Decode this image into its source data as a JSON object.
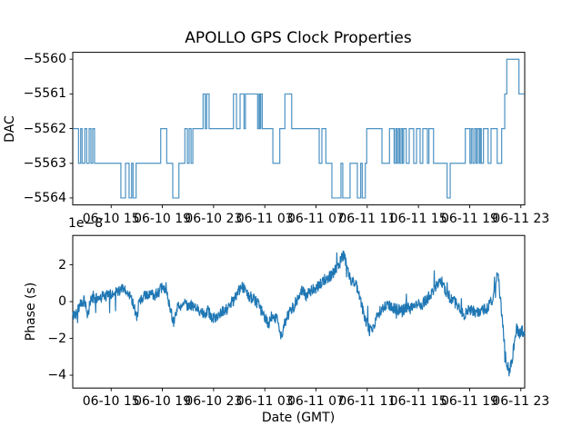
{
  "figure": {
    "title": "APOLLO GPS Clock Properties",
    "background_color": "#ffffff",
    "line_color": "#1f77b4",
    "text_color": "#000000"
  },
  "chart_data": [
    {
      "type": "line",
      "subplot": "top",
      "title": "APOLLO GPS Clock Properties",
      "ylabel": "DAC",
      "drawstyle": "steps-post",
      "grid": false,
      "legend": "none",
      "ylim": [
        -5564.2,
        -5559.8
      ],
      "yticks": [
        -5564,
        -5563,
        -5562,
        -5561,
        -5560
      ],
      "ytick_labels": [
        "−5564",
        "−5563",
        "−5562",
        "−5561",
        "−5560"
      ],
      "x_axis_unit": "hours from left edge of axis",
      "xlim_hours": [
        0,
        35.3
      ],
      "xticks_hours": [
        3,
        7,
        11,
        15,
        19,
        23,
        27,
        31,
        35
      ],
      "xtick_labels": [
        "06-10 15",
        "06-10 19",
        "06-10 23",
        "06-11 03",
        "06-11 07",
        "06-11 11",
        "06-11 15",
        "06-11 19",
        "06-11 23"
      ],
      "steps": [
        [
          0.0,
          -5562
        ],
        [
          0.45,
          -5563
        ],
        [
          0.62,
          -5562
        ],
        [
          0.73,
          -5563
        ],
        [
          0.94,
          -5562
        ],
        [
          1.09,
          -5563
        ],
        [
          1.28,
          -5562
        ],
        [
          1.42,
          -5563
        ],
        [
          1.56,
          -5562
        ],
        [
          1.7,
          -5563
        ],
        [
          3.76,
          -5564
        ],
        [
          4.12,
          -5563
        ],
        [
          4.4,
          -5564
        ],
        [
          4.6,
          -5563
        ],
        [
          4.71,
          -5564
        ],
        [
          4.95,
          -5563
        ],
        [
          6.87,
          -5562
        ],
        [
          7.34,
          -5563
        ],
        [
          7.81,
          -5564
        ],
        [
          8.29,
          -5563
        ],
        [
          8.76,
          -5562
        ],
        [
          8.95,
          -5563
        ],
        [
          9.09,
          -5562
        ],
        [
          9.24,
          -5563
        ],
        [
          9.38,
          -5562
        ],
        [
          10.18,
          -5561
        ],
        [
          10.35,
          -5562
        ],
        [
          10.46,
          -5561
        ],
        [
          10.65,
          -5562
        ],
        [
          12.55,
          -5561
        ],
        [
          12.79,
          -5562
        ],
        [
          13.07,
          -5561
        ],
        [
          13.38,
          -5562
        ],
        [
          13.49,
          -5561
        ],
        [
          14.44,
          -5562
        ],
        [
          14.55,
          -5561
        ],
        [
          14.63,
          -5562
        ],
        [
          14.68,
          -5561
        ],
        [
          14.8,
          -5562
        ],
        [
          15.63,
          -5563
        ],
        [
          16.17,
          -5562
        ],
        [
          16.57,
          -5561
        ],
        [
          17.1,
          -5562
        ],
        [
          19.25,
          -5563
        ],
        [
          19.46,
          -5562
        ],
        [
          19.77,
          -5563
        ],
        [
          20.24,
          -5564
        ],
        [
          20.95,
          -5563
        ],
        [
          21.09,
          -5564
        ],
        [
          21.66,
          -5563
        ],
        [
          22.23,
          -5564
        ],
        [
          22.49,
          -5563
        ],
        [
          22.61,
          -5564
        ],
        [
          22.85,
          -5563
        ],
        [
          22.96,
          -5562
        ],
        [
          24.15,
          -5563
        ],
        [
          24.74,
          -5562
        ],
        [
          25.1,
          -5563
        ],
        [
          25.22,
          -5562
        ],
        [
          25.32,
          -5563
        ],
        [
          25.43,
          -5562
        ],
        [
          25.53,
          -5563
        ],
        [
          25.64,
          -5562
        ],
        [
          25.75,
          -5563
        ],
        [
          25.85,
          -5562
        ],
        [
          26.05,
          -5563
        ],
        [
          26.28,
          -5562
        ],
        [
          26.63,
          -5563
        ],
        [
          26.85,
          -5562
        ],
        [
          27.13,
          -5563
        ],
        [
          27.34,
          -5562
        ],
        [
          27.7,
          -5563
        ],
        [
          27.82,
          -5562
        ],
        [
          28.18,
          -5563
        ],
        [
          29.24,
          -5564
        ],
        [
          29.48,
          -5563
        ],
        [
          30.66,
          -5562
        ],
        [
          31.02,
          -5563
        ],
        [
          31.13,
          -5562
        ],
        [
          31.25,
          -5563
        ],
        [
          31.39,
          -5562
        ],
        [
          31.51,
          -5563
        ],
        [
          31.61,
          -5562
        ],
        [
          31.75,
          -5563
        ],
        [
          31.82,
          -5562
        ],
        [
          31.91,
          -5563
        ],
        [
          32.08,
          -5562
        ],
        [
          32.44,
          -5563
        ],
        [
          32.67,
          -5562
        ],
        [
          33.15,
          -5563
        ],
        [
          33.5,
          -5562
        ],
        [
          33.74,
          -5561
        ],
        [
          33.9,
          -5560
        ],
        [
          34.85,
          -5561
        ]
      ]
    },
    {
      "type": "line",
      "subplot": "bottom",
      "ylabel": "Phase (s)",
      "xlabel": "Date (GMT)",
      "offset_text": "1e−8",
      "grid": false,
      "legend": "none",
      "y_unit_scale": 1e-08,
      "ylim_1e8": [
        -4.7,
        3.6
      ],
      "yticks_1e8": [
        -4,
        -2,
        0,
        2
      ],
      "ytick_labels": [
        "−4",
        "−2",
        "0",
        "2"
      ],
      "x_axis_unit": "hours from left edge of axis",
      "xlim_hours": [
        0,
        35.3
      ],
      "xticks_hours": [
        3,
        7,
        11,
        15,
        19,
        23,
        27,
        31,
        35
      ],
      "xtick_labels": [
        "06-10 15",
        "06-10 19",
        "06-10 23",
        "06-11 03",
        "06-11 07",
        "06-11 11",
        "06-11 15",
        "06-11 19",
        "06-11 23"
      ],
      "trend_anchors_1e8": [
        [
          0,
          -0.8
        ],
        [
          0.3,
          -0.6
        ],
        [
          0.6,
          -0.1
        ],
        [
          0.9,
          0.1
        ],
        [
          1.15,
          -0.9
        ],
        [
          1.4,
          0.2
        ],
        [
          1.8,
          0.1
        ],
        [
          2.2,
          0.3
        ],
        [
          2.6,
          0.3
        ],
        [
          3.0,
          0.4
        ],
        [
          3.4,
          0.5
        ],
        [
          3.8,
          0.7
        ],
        [
          4.2,
          0.5
        ],
        [
          4.6,
          0.2
        ],
        [
          5.0,
          -0.8
        ],
        [
          5.2,
          0.0
        ],
        [
          5.6,
          0.3
        ],
        [
          6.0,
          0.4
        ],
        [
          6.4,
          0.4
        ],
        [
          6.8,
          0.6
        ],
        [
          7.1,
          0.8
        ],
        [
          7.4,
          0.3
        ],
        [
          7.7,
          -0.6
        ],
        [
          7.9,
          -1.1
        ],
        [
          8.2,
          -0.3
        ],
        [
          8.6,
          -0.1
        ],
        [
          9.0,
          -0.2
        ],
        [
          9.4,
          -0.3
        ],
        [
          9.8,
          -0.4
        ],
        [
          10.2,
          -0.6
        ],
        [
          10.6,
          -0.5
        ],
        [
          11.0,
          -1.0
        ],
        [
          11.3,
          -0.7
        ],
        [
          11.6,
          -0.6
        ],
        [
          12.0,
          -0.4
        ],
        [
          12.4,
          -0.1
        ],
        [
          12.8,
          0.4
        ],
        [
          13.2,
          0.8
        ],
        [
          13.5,
          0.6
        ],
        [
          13.8,
          0.3
        ],
        [
          14.2,
          0.1
        ],
        [
          14.6,
          -0.3
        ],
        [
          15.0,
          -0.9
        ],
        [
          15.3,
          -1.2
        ],
        [
          15.6,
          -0.7
        ],
        [
          16.0,
          -1.0
        ],
        [
          16.3,
          -1.9
        ],
        [
          16.6,
          -1.1
        ],
        [
          17.0,
          -0.5
        ],
        [
          17.3,
          -0.2
        ],
        [
          17.6,
          0.3
        ],
        [
          17.9,
          0.6
        ],
        [
          18.2,
          0.3
        ],
        [
          18.5,
          0.5
        ],
        [
          18.9,
          0.7
        ],
        [
          19.3,
          0.9
        ],
        [
          19.7,
          1.2
        ],
        [
          20.1,
          1.4
        ],
        [
          20.5,
          1.7
        ],
        [
          20.9,
          2.2
        ],
        [
          21.2,
          2.6
        ],
        [
          21.4,
          1.8
        ],
        [
          21.7,
          1.2
        ],
        [
          22.0,
          1.1
        ],
        [
          22.3,
          0.5
        ],
        [
          22.6,
          -0.3
        ],
        [
          22.9,
          -1.1
        ],
        [
          23.2,
          -1.6
        ],
        [
          23.5,
          -1.4
        ],
        [
          23.8,
          -0.8
        ],
        [
          24.1,
          -0.4
        ],
        [
          24.5,
          -0.2
        ],
        [
          24.9,
          -0.3
        ],
        [
          25.3,
          -0.4
        ],
        [
          25.7,
          -0.5
        ],
        [
          26.1,
          -0.3
        ],
        [
          26.5,
          -0.4
        ],
        [
          26.9,
          -0.2
        ],
        [
          27.3,
          -0.1
        ],
        [
          27.7,
          0.2
        ],
        [
          28.1,
          0.5
        ],
        [
          28.5,
          0.9
        ],
        [
          28.8,
          1.1
        ],
        [
          29.1,
          0.6
        ],
        [
          29.5,
          0.2
        ],
        [
          29.9,
          -0.1
        ],
        [
          30.3,
          -0.4
        ],
        [
          30.6,
          -0.8
        ],
        [
          30.9,
          -0.4
        ],
        [
          31.2,
          -0.5
        ],
        [
          31.5,
          -0.6
        ],
        [
          31.9,
          -0.5
        ],
        [
          32.3,
          -0.4
        ],
        [
          32.7,
          0.0
        ],
        [
          33.0,
          0.6
        ],
        [
          33.2,
          1.8
        ],
        [
          33.35,
          0.5
        ],
        [
          33.6,
          -1.3
        ],
        [
          33.8,
          -3.0
        ],
        [
          34.1,
          -3.9
        ],
        [
          34.3,
          -3.2
        ],
        [
          34.5,
          -2.2
        ],
        [
          34.7,
          -1.4
        ],
        [
          34.9,
          -1.8
        ],
        [
          35.1,
          -1.6
        ],
        [
          35.3,
          -1.8
        ]
      ],
      "noise_amplitude_1e8": 0.32,
      "noise_seed": 42,
      "noise_samples": 1300
    }
  ]
}
